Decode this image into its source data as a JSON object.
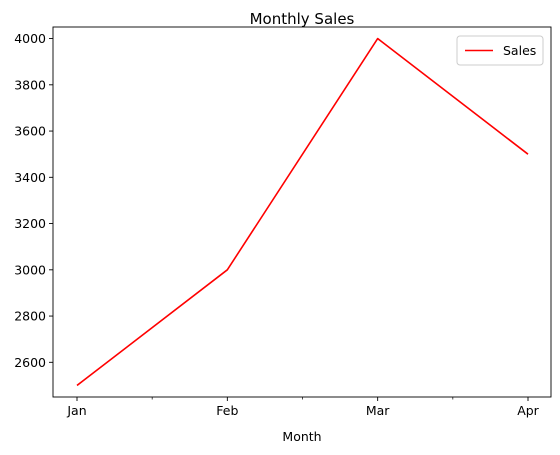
{
  "chart_data": {
    "type": "line",
    "title": "Monthly Sales",
    "xlabel": "Month",
    "ylabel": "",
    "categories": [
      "Jan",
      "Feb",
      "Mar",
      "Apr"
    ],
    "series": [
      {
        "name": "Sales",
        "values": [
          2500,
          3000,
          4000,
          3500
        ],
        "color": "#ff0000"
      }
    ],
    "ylim": [
      2450,
      4050
    ],
    "yticks": [
      2600,
      2800,
      3000,
      3200,
      3400,
      3600,
      3800,
      4000
    ],
    "legend": "top-right",
    "grid": false
  }
}
